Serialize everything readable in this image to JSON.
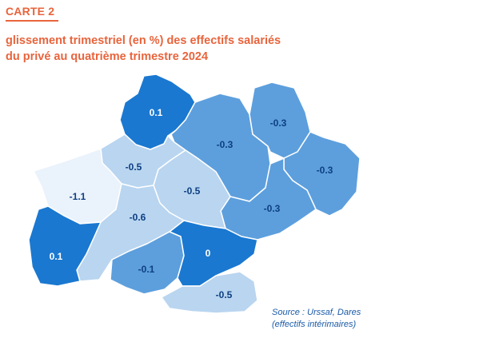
{
  "card": {
    "label": "CARTE 2"
  },
  "title": {
    "line1": "glissement trimestriel (en %) des effectifs salariés",
    "line2": "du privé au quatrième trimestre 2024"
  },
  "map": {
    "departments": [
      {
        "key": "lot",
        "value": "0.1",
        "fill": "#1a78d0",
        "text_color": "#ffffff"
      },
      {
        "key": "aveyron",
        "value": "-0.3",
        "fill": "#5d9fdd",
        "text_color": "#0d3f82"
      },
      {
        "key": "lozere",
        "value": "-0.3",
        "fill": "#5d9fdd",
        "text_color": "#0d3f82"
      },
      {
        "key": "gard",
        "value": "-0.3",
        "fill": "#5d9fdd",
        "text_color": "#0d3f82"
      },
      {
        "key": "herault",
        "value": "-0.3",
        "fill": "#5d9fdd",
        "text_color": "#0d3f82"
      },
      {
        "key": "tarn-et-garonne",
        "value": "-0.5",
        "fill": "#b9d5f0",
        "text_color": "#0d3f82"
      },
      {
        "key": "tarn",
        "value": "-0.5",
        "fill": "#b9d5f0",
        "text_color": "#0d3f82"
      },
      {
        "key": "gers",
        "value": "-1.1",
        "fill": "#eaf2fb",
        "text_color": "#0d3f82"
      },
      {
        "key": "haute-garonne",
        "value": "-0.6",
        "fill": "#b9d5f0",
        "text_color": "#0d3f82"
      },
      {
        "key": "hautes-pyrenees",
        "value": "0.1",
        "fill": "#1a78d0",
        "text_color": "#ffffff"
      },
      {
        "key": "ariege",
        "value": "-0.1",
        "fill": "#5d9fdd",
        "text_color": "#0d3f82"
      },
      {
        "key": "aude",
        "value": "0",
        "fill": "#1a78d0",
        "text_color": "#ffffff"
      },
      {
        "key": "pyrenees-orientales",
        "value": "-0.5",
        "fill": "#b9d5f0",
        "text_color": "#0d3f82"
      }
    ]
  },
  "source": {
    "line1": "Source : Urssaf, Dares",
    "line2": "(effectifs intérimaires)"
  },
  "colors": {
    "accent": "#e8643c",
    "source_text": "#1a5aa8",
    "border": "#ffffff"
  }
}
